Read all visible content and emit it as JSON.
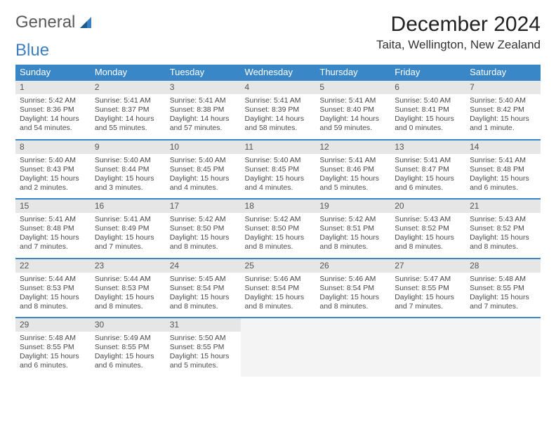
{
  "logo": {
    "word1": "General",
    "word2": "Blue"
  },
  "title": "December 2024",
  "location": "Taita, Wellington, New Zealand",
  "colors": {
    "header_bg": "#3a87c7",
    "header_text": "#ffffff",
    "daynum_bg": "#e6e6e6",
    "row_divider": "#3a87c7",
    "body_text": "#4a4a4a",
    "logo_gray": "#5a5a5a",
    "logo_blue": "#3a7fbf"
  },
  "weekdays": [
    "Sunday",
    "Monday",
    "Tuesday",
    "Wednesday",
    "Thursday",
    "Friday",
    "Saturday"
  ],
  "days": [
    {
      "n": "1",
      "sr": "5:42 AM",
      "ss": "8:36 PM",
      "dl": "14 hours and 54 minutes."
    },
    {
      "n": "2",
      "sr": "5:41 AM",
      "ss": "8:37 PM",
      "dl": "14 hours and 55 minutes."
    },
    {
      "n": "3",
      "sr": "5:41 AM",
      "ss": "8:38 PM",
      "dl": "14 hours and 57 minutes."
    },
    {
      "n": "4",
      "sr": "5:41 AM",
      "ss": "8:39 PM",
      "dl": "14 hours and 58 minutes."
    },
    {
      "n": "5",
      "sr": "5:41 AM",
      "ss": "8:40 PM",
      "dl": "14 hours and 59 minutes."
    },
    {
      "n": "6",
      "sr": "5:40 AM",
      "ss": "8:41 PM",
      "dl": "15 hours and 0 minutes."
    },
    {
      "n": "7",
      "sr": "5:40 AM",
      "ss": "8:42 PM",
      "dl": "15 hours and 1 minute."
    },
    {
      "n": "8",
      "sr": "5:40 AM",
      "ss": "8:43 PM",
      "dl": "15 hours and 2 minutes."
    },
    {
      "n": "9",
      "sr": "5:40 AM",
      "ss": "8:44 PM",
      "dl": "15 hours and 3 minutes."
    },
    {
      "n": "10",
      "sr": "5:40 AM",
      "ss": "8:45 PM",
      "dl": "15 hours and 4 minutes."
    },
    {
      "n": "11",
      "sr": "5:40 AM",
      "ss": "8:45 PM",
      "dl": "15 hours and 4 minutes."
    },
    {
      "n": "12",
      "sr": "5:41 AM",
      "ss": "8:46 PM",
      "dl": "15 hours and 5 minutes."
    },
    {
      "n": "13",
      "sr": "5:41 AM",
      "ss": "8:47 PM",
      "dl": "15 hours and 6 minutes."
    },
    {
      "n": "14",
      "sr": "5:41 AM",
      "ss": "8:48 PM",
      "dl": "15 hours and 6 minutes."
    },
    {
      "n": "15",
      "sr": "5:41 AM",
      "ss": "8:48 PM",
      "dl": "15 hours and 7 minutes."
    },
    {
      "n": "16",
      "sr": "5:41 AM",
      "ss": "8:49 PM",
      "dl": "15 hours and 7 minutes."
    },
    {
      "n": "17",
      "sr": "5:42 AM",
      "ss": "8:50 PM",
      "dl": "15 hours and 8 minutes."
    },
    {
      "n": "18",
      "sr": "5:42 AM",
      "ss": "8:50 PM",
      "dl": "15 hours and 8 minutes."
    },
    {
      "n": "19",
      "sr": "5:42 AM",
      "ss": "8:51 PM",
      "dl": "15 hours and 8 minutes."
    },
    {
      "n": "20",
      "sr": "5:43 AM",
      "ss": "8:52 PM",
      "dl": "15 hours and 8 minutes."
    },
    {
      "n": "21",
      "sr": "5:43 AM",
      "ss": "8:52 PM",
      "dl": "15 hours and 8 minutes."
    },
    {
      "n": "22",
      "sr": "5:44 AM",
      "ss": "8:53 PM",
      "dl": "15 hours and 8 minutes."
    },
    {
      "n": "23",
      "sr": "5:44 AM",
      "ss": "8:53 PM",
      "dl": "15 hours and 8 minutes."
    },
    {
      "n": "24",
      "sr": "5:45 AM",
      "ss": "8:54 PM",
      "dl": "15 hours and 8 minutes."
    },
    {
      "n": "25",
      "sr": "5:46 AM",
      "ss": "8:54 PM",
      "dl": "15 hours and 8 minutes."
    },
    {
      "n": "26",
      "sr": "5:46 AM",
      "ss": "8:54 PM",
      "dl": "15 hours and 8 minutes."
    },
    {
      "n": "27",
      "sr": "5:47 AM",
      "ss": "8:55 PM",
      "dl": "15 hours and 7 minutes."
    },
    {
      "n": "28",
      "sr": "5:48 AM",
      "ss": "8:55 PM",
      "dl": "15 hours and 7 minutes."
    },
    {
      "n": "29",
      "sr": "5:48 AM",
      "ss": "8:55 PM",
      "dl": "15 hours and 6 minutes."
    },
    {
      "n": "30",
      "sr": "5:49 AM",
      "ss": "8:55 PM",
      "dl": "15 hours and 6 minutes."
    },
    {
      "n": "31",
      "sr": "5:50 AM",
      "ss": "8:55 PM",
      "dl": "15 hours and 5 minutes."
    }
  ],
  "labels": {
    "sunrise": "Sunrise:",
    "sunset": "Sunset:",
    "daylight": "Daylight:"
  }
}
